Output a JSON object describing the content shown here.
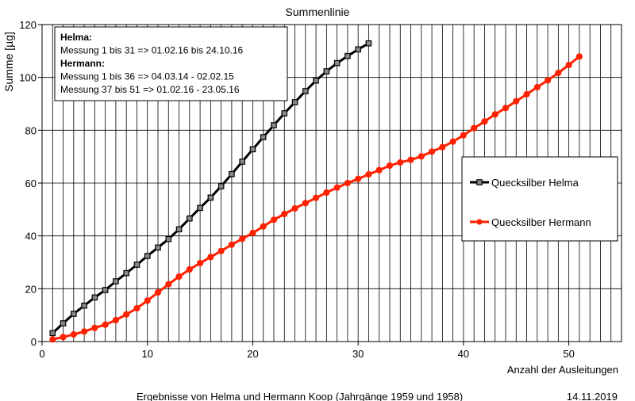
{
  "chart_data": {
    "type": "line",
    "title": "Summenlinie",
    "xlabel": "Anzahl der Ausleitungen",
    "ylabel": "Summe [µg]",
    "xlim": [
      0,
      55
    ],
    "ylim": [
      0,
      120
    ],
    "xticks": [
      0,
      10,
      20,
      30,
      40,
      50
    ],
    "yticks": [
      0,
      20,
      40,
      60,
      80,
      100,
      120
    ],
    "grid": "vertical lines every 1 unit, horizontal lines every 20 units",
    "legend_position": "right",
    "series": [
      {
        "name": "Quecksilber Helma",
        "color": "#000000",
        "marker": "square",
        "x": [
          1,
          2,
          3,
          4,
          5,
          6,
          7,
          8,
          9,
          10,
          11,
          12,
          13,
          14,
          15,
          16,
          17,
          18,
          19,
          20,
          21,
          22,
          23,
          24,
          25,
          26,
          27,
          28,
          29,
          30,
          31
        ],
        "y": [
          3.2,
          6.9,
          10.5,
          13.6,
          16.7,
          19.5,
          22.8,
          25.9,
          29.1,
          32.4,
          35.6,
          38.8,
          42.5,
          46.6,
          50.6,
          54.5,
          58.8,
          63.4,
          68.1,
          72.8,
          77.4,
          81.9,
          86.4,
          90.6,
          94.8,
          98.8,
          102.3,
          105.4,
          108.1,
          110.6,
          112.9
        ]
      },
      {
        "name": "Quecksilber Hermann",
        "color": "#ff2200",
        "marker": "circle",
        "x": [
          1,
          2,
          3,
          4,
          5,
          6,
          7,
          8,
          9,
          10,
          11,
          12,
          13,
          14,
          15,
          16,
          17,
          18,
          19,
          20,
          21,
          22,
          23,
          24,
          25,
          26,
          27,
          28,
          29,
          30,
          31,
          32,
          33,
          34,
          35,
          36,
          37,
          38,
          39,
          40,
          41,
          42,
          43,
          44,
          45,
          46,
          47,
          48,
          49,
          50,
          51
        ],
        "y": [
          0.8,
          1.7,
          2.7,
          3.8,
          5.2,
          6.4,
          8.1,
          10.3,
          12.6,
          15.5,
          18.6,
          21.7,
          24.6,
          27.3,
          29.7,
          32.0,
          34.3,
          36.7,
          38.9,
          41.1,
          43.6,
          46.1,
          48.3,
          50.4,
          52.4,
          54.4,
          56.4,
          58.3,
          60.0,
          61.6,
          63.3,
          64.9,
          66.6,
          67.8,
          68.8,
          70.1,
          71.9,
          73.6,
          75.7,
          78.1,
          80.8,
          83.3,
          86.0,
          88.4,
          91.0,
          93.6,
          96.3,
          98.9,
          101.7,
          104.7,
          107.9
        ]
      }
    ],
    "annotation": {
      "lines": [
        {
          "text": "Helma:",
          "bold": true
        },
        {
          "text": "Messung 1 bis 31 => 01.02.16 bis 24.10.16",
          "bold": false
        },
        {
          "text": "Hermann:",
          "bold": true
        },
        {
          "text": "Messung 1 bis 36 => 04.03.14 - 02.02.15",
          "bold": false
        },
        {
          "text": "Messung 37 bis 51 => 01.02.16 - 23.05.16",
          "bold": false
        }
      ]
    },
    "footer": {
      "text": "Ergebnisse von Helma und Hermann Koop (Jahrgänge 1959 und 1958)",
      "date": "14.11.2019"
    }
  }
}
